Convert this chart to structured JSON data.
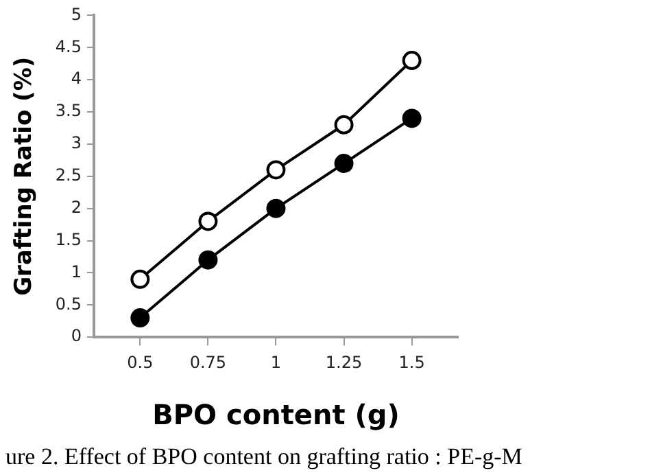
{
  "chart_data": {
    "type": "line",
    "xlabel": "BPO content (g)",
    "ylabel": "Grafting Ratio (%)",
    "x": [
      0.5,
      0.75,
      1,
      1.25,
      1.5
    ],
    "series": [
      {
        "color": "#000000",
        "values": [
          0.9,
          1.8,
          2.6,
          3.3,
          4.3
        ]
      },
      {
        "color": "#000000",
        "values": [
          0.3,
          1.2,
          2.0,
          2.7,
          3.4
        ]
      }
    ],
    "xlim": [
      0.33,
      1.67
    ],
    "xticks": [
      0.5,
      0.75,
      1,
      1.25,
      1.5
    ],
    "ylim": [
      0,
      5
    ],
    "yticks": [
      0,
      0.5,
      1,
      1.5,
      2,
      2.5,
      3,
      3.5,
      4,
      4.5,
      5
    ],
    "grid": false,
    "legend": false,
    "marker": "circle",
    "line_style": "solid",
    "annotations": [
      "ure 2. Effect of BPO content on grafting ratio : PE-g-M"
    ]
  }
}
